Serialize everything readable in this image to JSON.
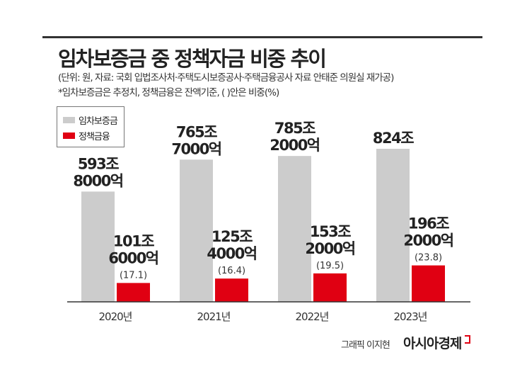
{
  "chart_data": {
    "type": "bar",
    "title": "임차보증금 중 정책자금 비중 추이",
    "subtitle": "(단위: 원, 자료: 국회 입법조사처·주택도시보증공사·주택금융공사 자료 안태준 의원실 재가공)",
    "note": "*임차보증금은 추정치, 정책금융은 잔액기준, (  )안은 비중(%)",
    "categories": [
      "2020년",
      "2021년",
      "2022년",
      "2023년"
    ],
    "unit": "조 원",
    "series": [
      {
        "name": "임차보증금",
        "color": "#cccccc",
        "values": [
          593.8,
          765.7,
          785.2,
          824
        ],
        "labels": [
          [
            "593조",
            "8000억"
          ],
          [
            "765조",
            "7000억"
          ],
          [
            "785조",
            "2000억"
          ],
          [
            "824조"
          ]
        ]
      },
      {
        "name": "정책금융",
        "color": "#e00012",
        "values": [
          101.6,
          125.4,
          153.2,
          196.2
        ],
        "labels": [
          [
            "101조",
            "6000억"
          ],
          [
            "125조",
            "4000억"
          ],
          [
            "153조",
            "2000억"
          ],
          [
            "196조",
            "2000억"
          ]
        ],
        "shares": [
          "(17.1)",
          "(16.4)",
          "(19.5)",
          "(23.8)"
        ]
      }
    ],
    "ylim": [
      0,
      900
    ],
    "grid": false,
    "legend": "top-left"
  },
  "footer": {
    "credit": "그래픽 이지현",
    "brand": "아시아경제"
  }
}
